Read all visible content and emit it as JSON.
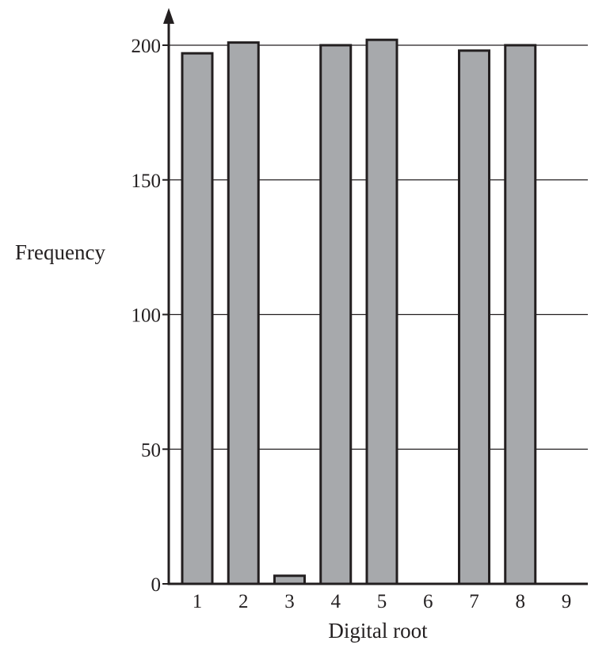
{
  "chart_data": {
    "type": "bar",
    "title": "",
    "xlabel": "Digital root",
    "ylabel": "Frequency",
    "categories": [
      "1",
      "2",
      "3",
      "4",
      "5",
      "6",
      "7",
      "8",
      "9"
    ],
    "values": [
      197,
      201,
      3,
      200,
      202,
      0,
      198,
      200,
      0
    ],
    "ylim": [
      0,
      200
    ],
    "yticks": [
      "0",
      "50",
      "100",
      "150",
      "200"
    ],
    "grid": true,
    "colors": {
      "bar_fill": "#a7a9ac",
      "bar_stroke": "#231f20",
      "axis": "#231f20"
    }
  }
}
